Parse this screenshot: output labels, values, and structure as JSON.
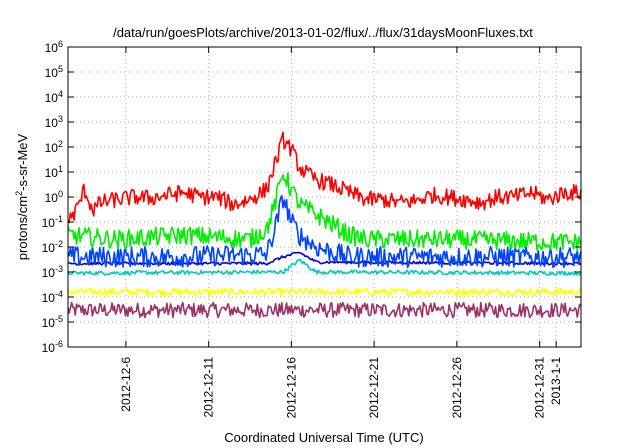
{
  "chart_data": {
    "type": "line",
    "title": "/data/run/goesPlots/archive/2013-01-02/flux/../flux/31daysMoonFluxes.txt",
    "xlabel": "Coordinated Universal Time (UTC)",
    "ylabel_parts": [
      "protons/cm",
      "2",
      "-s-sr-MeV"
    ],
    "y_scale": "log",
    "ylim": [
      1e-06,
      1000000.0
    ],
    "y_ticks": [
      {
        "value": 1e-06,
        "base": "10",
        "exp": "-6"
      },
      {
        "value": 1e-05,
        "base": "10",
        "exp": "-5"
      },
      {
        "value": 0.0001,
        "base": "10",
        "exp": "-4"
      },
      {
        "value": 0.001,
        "base": "10",
        "exp": "-3"
      },
      {
        "value": 0.01,
        "base": "10",
        "exp": "-2"
      },
      {
        "value": 0.1,
        "base": "10",
        "exp": "-1"
      },
      {
        "value": 1,
        "base": "10",
        "exp": "0"
      },
      {
        "value": 10,
        "base": "10",
        "exp": "1"
      },
      {
        "value": 100,
        "base": "10",
        "exp": "2"
      },
      {
        "value": 1000,
        "base": "10",
        "exp": "3"
      },
      {
        "value": 10000,
        "base": "10",
        "exp": "4"
      },
      {
        "value": 100000,
        "base": "10",
        "exp": "5"
      },
      {
        "value": 1000000,
        "base": "10",
        "exp": "6"
      }
    ],
    "xlim": [
      "2012-12-02T12:00",
      "2013-01-02T12:00"
    ],
    "x_ticks": [
      {
        "date": "2012-12-06",
        "label": "2012-12-6"
      },
      {
        "date": "2012-12-11",
        "label": "2012-12-11"
      },
      {
        "date": "2012-12-16",
        "label": "2012-12-16"
      },
      {
        "date": "2012-12-21",
        "label": "2012-12-21"
      },
      {
        "date": "2012-12-26",
        "label": "2012-12-26"
      },
      {
        "date": "2012-12-31",
        "label": "2012-12-31"
      },
      {
        "date": "2013-01-01",
        "label": "2013-1-1"
      }
    ],
    "grid": true,
    "legend": "none",
    "series": [
      {
        "color": "#ff0000",
        "noise": 0.33,
        "x": [
          "2012-12-02T12:00",
          "2012-12-03T00:00",
          "2012-12-03T12:00",
          "2012-12-04T00:00",
          "2012-12-04T12:00",
          "2012-12-05T12:00",
          "2012-12-06T12:00",
          "2012-12-07T12:00",
          "2012-12-08T12:00",
          "2012-12-09T12:00",
          "2012-12-10T12:00",
          "2012-12-11T12:00",
          "2012-12-12T12:00",
          "2012-12-13T12:00",
          "2012-12-14T12:00",
          "2012-12-15T00:00",
          "2012-12-15T12:00",
          "2012-12-16T00:00",
          "2012-12-16T12:00",
          "2012-12-17T00:00",
          "2012-12-17T12:00",
          "2012-12-18T12:00",
          "2012-12-19T12:00",
          "2012-12-20T12:00",
          "2012-12-21T12:00",
          "2012-12-22T12:00",
          "2012-12-23T12:00",
          "2012-12-24T12:00",
          "2012-12-25T12:00",
          "2012-12-26T12:00",
          "2012-12-27T12:00",
          "2012-12-28T12:00",
          "2012-12-29T12:00",
          "2012-12-30T12:00",
          "2012-12-31T12:00",
          "2013-01-01T12:00",
          "2013-01-02T12:00"
        ],
        "y": [
          0.1,
          0.3,
          2.0,
          0.3,
          0.6,
          0.8,
          1.0,
          0.9,
          1.2,
          1.5,
          1.0,
          1.0,
          0.5,
          0.8,
          2.0,
          20,
          200,
          80,
          15,
          8,
          5,
          3,
          1.5,
          0.8,
          0.8,
          0.6,
          0.7,
          1.2,
          1.0,
          0.8,
          0.6,
          1.0,
          1.0,
          1.5,
          0.8,
          1.5,
          1.5
        ]
      },
      {
        "color": "#00ee00",
        "noise": 0.38,
        "x": [
          "2012-12-02T12:00",
          "2012-12-05T12:00",
          "2012-12-09T12:00",
          "2012-12-13T12:00",
          "2012-12-14T12:00",
          "2012-12-15T00:00",
          "2012-12-15T12:00",
          "2012-12-16T00:00",
          "2012-12-16T12:00",
          "2012-12-17T12:00",
          "2012-12-18T12:00",
          "2012-12-19T12:00",
          "2012-12-20T12:00",
          "2012-12-25T12:00",
          "2013-01-02T12:00"
        ],
        "y": [
          0.03,
          0.02,
          0.03,
          0.02,
          0.05,
          0.5,
          10,
          2,
          0.5,
          0.2,
          0.08,
          0.03,
          0.02,
          0.02,
          0.015
        ]
      },
      {
        "color": "#0044ff",
        "noise": 0.42,
        "x": [
          "2012-12-02T12:00",
          "2012-12-08T12:00",
          "2012-12-14T12:00",
          "2012-12-15T00:00",
          "2012-12-15T12:00",
          "2012-12-16T00:00",
          "2012-12-16T12:00",
          "2012-12-17T12:00",
          "2012-12-18T12:00",
          "2012-12-19T12:00",
          "2013-01-02T12:00"
        ],
        "y": [
          0.004,
          0.004,
          0.005,
          0.05,
          1.0,
          0.1,
          0.03,
          0.01,
          0.006,
          0.004,
          0.004
        ]
      },
      {
        "color": "#0000dd",
        "noise": 0.06,
        "x": [
          "2012-12-02T12:00",
          "2012-12-14T12:00",
          "2012-12-15T12:00",
          "2012-12-16T12:00",
          "2012-12-17T12:00",
          "2013-01-02T12:00"
        ],
        "y": [
          0.0022,
          0.0022,
          0.004,
          0.006,
          0.0025,
          0.0022
        ]
      },
      {
        "color": "#00ccbb",
        "noise": 0.08,
        "x": [
          "2012-12-02T12:00",
          "2012-12-15T12:00",
          "2012-12-16T12:00",
          "2012-12-17T12:00",
          "2013-01-02T12:00"
        ],
        "y": [
          0.0009,
          0.001,
          0.003,
          0.001,
          0.0009
        ]
      },
      {
        "color": "#ffff00",
        "noise": 0.14,
        "x": [
          "2012-12-02T12:00",
          "2013-01-02T12:00"
        ],
        "y": [
          0.00016,
          0.00016
        ]
      },
      {
        "color": "#993366",
        "noise": 0.3,
        "x": [
          "2012-12-02T12:00",
          "2013-01-02T12:00"
        ],
        "y": [
          3e-05,
          3e-05
        ]
      }
    ]
  }
}
